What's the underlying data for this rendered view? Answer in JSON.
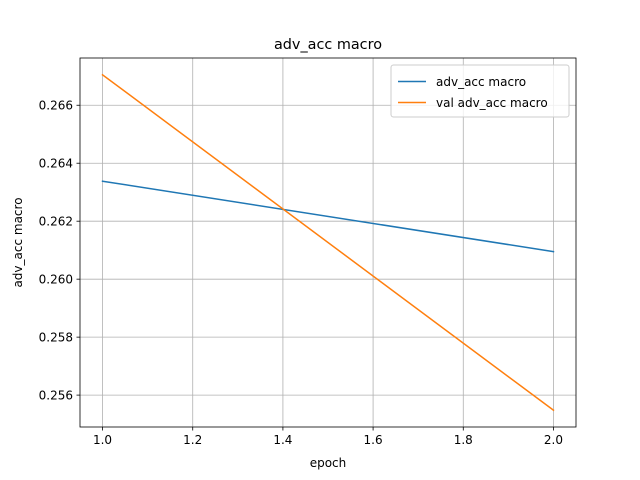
{
  "chart_data": {
    "type": "line",
    "title": "adv_acc macro",
    "xlabel": "epoch",
    "ylabel": "adv_acc macro",
    "x": [
      1.0,
      2.0
    ],
    "series": [
      {
        "name": "adv_acc macro",
        "values": [
          0.26338,
          0.26095
        ],
        "color": "#1f77b4"
      },
      {
        "name": "val adv_acc macro",
        "values": [
          0.26705,
          0.25548
        ],
        "color": "#ff7f0e"
      }
    ],
    "xlim": [
      0.95,
      2.05
    ],
    "ylim": [
      0.2549,
      0.26763
    ],
    "xticks": [
      1.0,
      1.2,
      1.4,
      1.6,
      1.8,
      2.0
    ],
    "xtick_labels": [
      "1.0",
      "1.2",
      "1.4",
      "1.6",
      "1.8",
      "2.0"
    ],
    "yticks": [
      0.256,
      0.258,
      0.26,
      0.262,
      0.264,
      0.266
    ],
    "ytick_labels": [
      "0.256",
      "0.258",
      "0.260",
      "0.262",
      "0.264",
      "0.266"
    ],
    "grid": true,
    "legend_position": "top-right"
  }
}
